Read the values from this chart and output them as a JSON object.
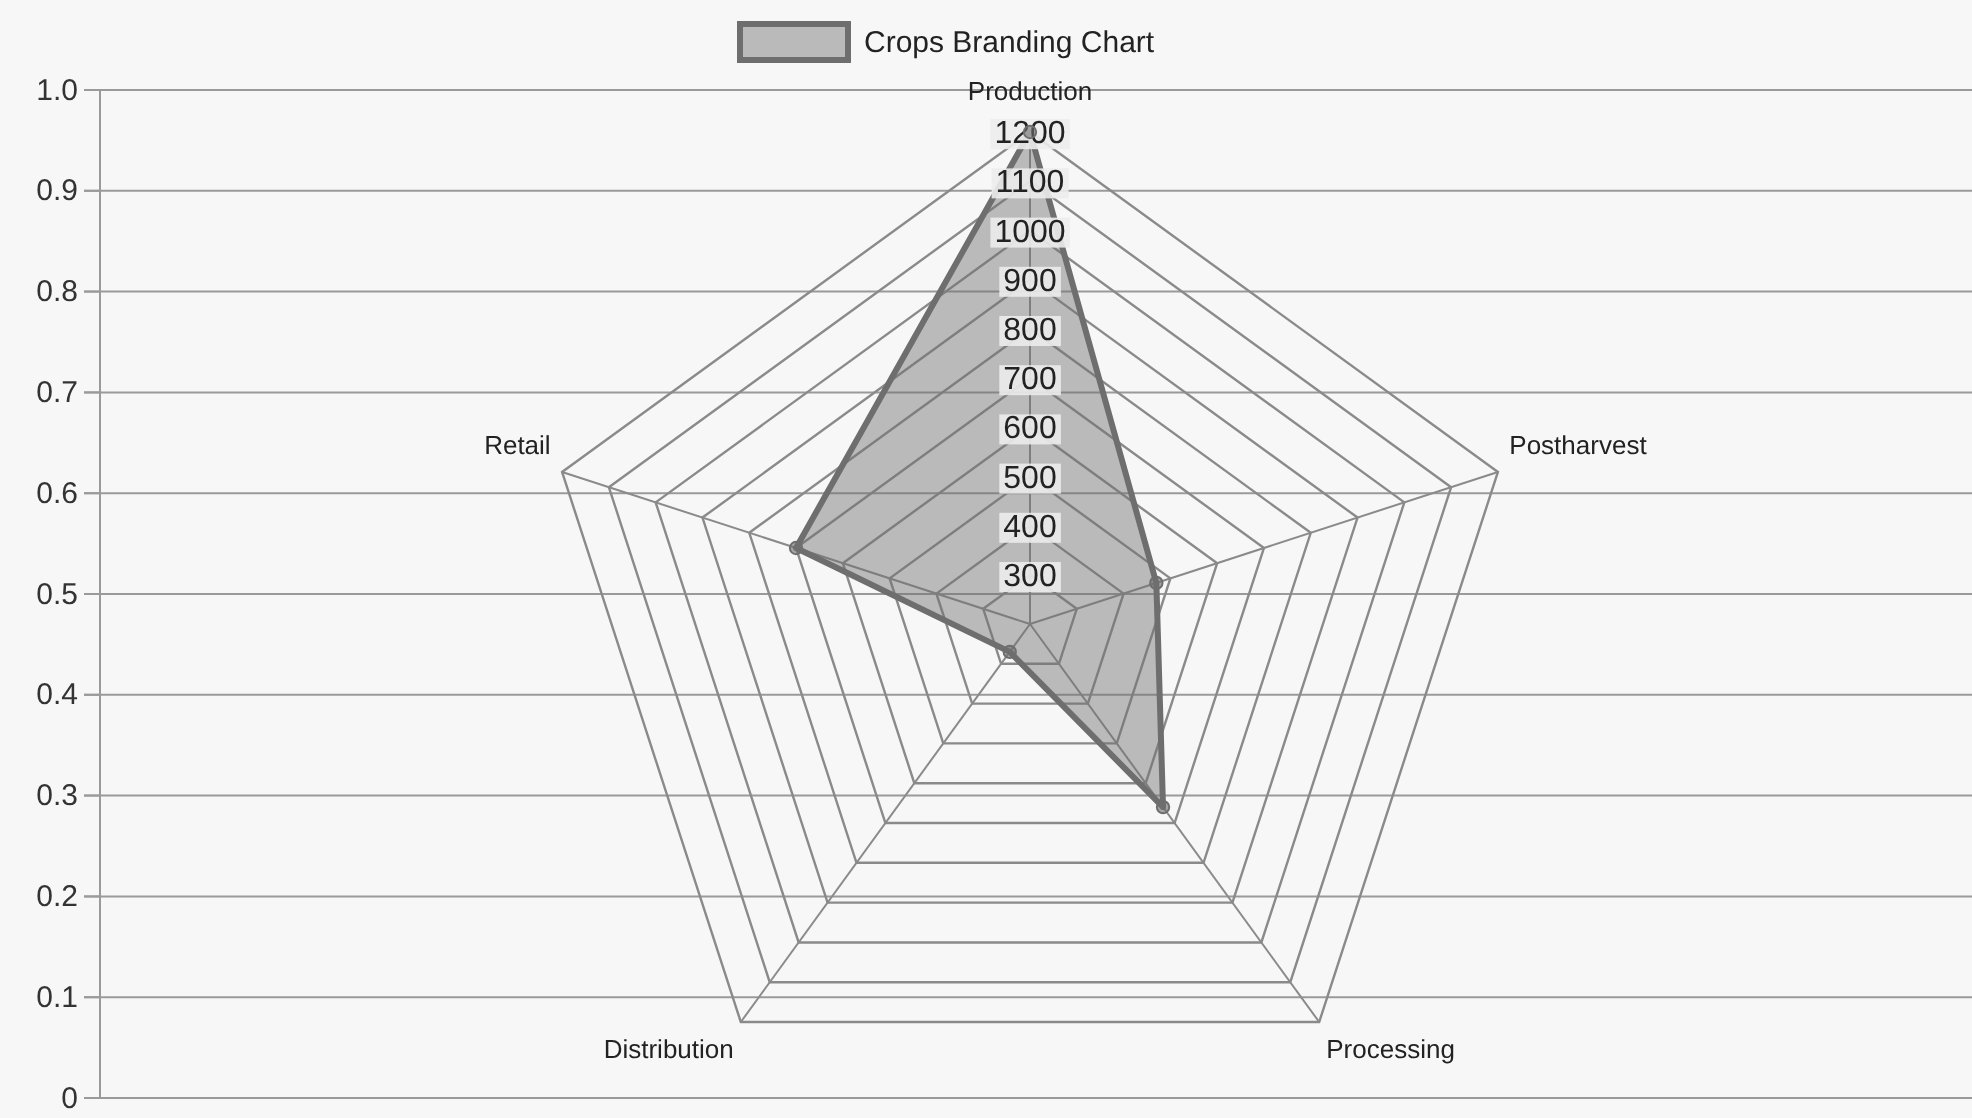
{
  "chart_data": [
    {
      "type": "radar",
      "categories": [
        "Production",
        "Postharvest",
        "Processing",
        "Distribution",
        "Retail"
      ],
      "series": [
        {
          "name": "Crops Branding Chart",
          "color": "#6e6e6e",
          "values": [
            1200,
            470,
            660,
            270,
            700
          ]
        }
      ],
      "ylim": [
        200,
        1200
      ],
      "yticks": [
        300,
        400,
        500,
        600,
        700,
        800,
        900,
        1000,
        1100,
        1200
      ],
      "grid": true,
      "legend": "top",
      "marker": "circle"
    },
    {
      "type": "line",
      "categories": [
        null
      ],
      "values": [
        null
      ],
      "ylim": [
        0,
        1
      ],
      "yticks": [
        0,
        0.1,
        0.2,
        0.3,
        0.4,
        0.5,
        0.6,
        0.7,
        0.8,
        0.9,
        {
          "value": 1,
          "label": "1.0"
        }
      ],
      "grid": "y",
      "tick_labels": "y"
    }
  ]
}
